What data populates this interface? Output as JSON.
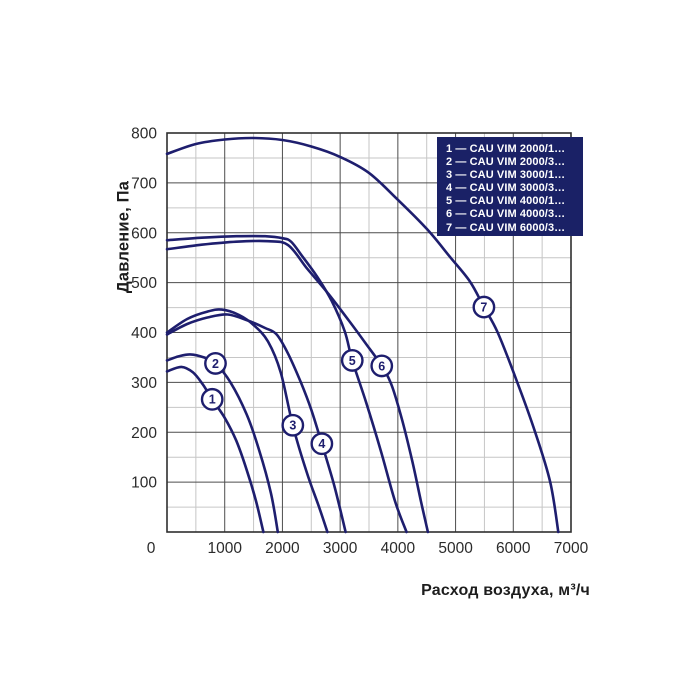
{
  "figure": {
    "y_axis_title": "Давление, Па",
    "x_axis_title": "Расход воздуха, м³/ч"
  },
  "chart_data": {
    "type": "line",
    "title": "",
    "xlabel": "Расход воздуха, м³/ч",
    "ylabel": "Давление, Па",
    "xlim": [
      0,
      7000
    ],
    "ylim": [
      0,
      800
    ],
    "x_major_step": 1000,
    "x_minor_step": 500,
    "y_major_step": 100,
    "y_minor_step": 50,
    "grid": true,
    "x_ticks": [
      0,
      1000,
      2000,
      3000,
      4000,
      5000,
      6000,
      7000
    ],
    "x_tick_labels": [
      "0",
      "1000",
      "2000",
      "3000",
      "4000",
      "5000",
      "6000",
      "7000"
    ],
    "y_ticks": [
      100,
      200,
      300,
      400,
      500,
      600,
      700,
      800
    ],
    "y_tick_labels": [
      "100",
      "200",
      "300",
      "400",
      "500",
      "600",
      "700",
      "800"
    ],
    "line_color": "#1e1e6e",
    "grid_major_color": "#4d4d4d",
    "grid_minor_color": "#c6c6c6",
    "legend_position": "top-right",
    "legend_bg": "#1a2166",
    "legend_text_color": "#ffffff",
    "legend_entries": [
      "1 — CAU VIM 2000/1…",
      "2 — CAU VIM 2000/3…",
      "3 — CAU VIM 3000/1…",
      "4 — CAU VIM 3000/3…",
      "5 — CAU VIM 4000/1…",
      "6 — CAU VIM 4000/3…",
      "7 — CAU VIM 6000/3…"
    ],
    "series": [
      {
        "name": "CAU VIM 2000/1",
        "marker": "1",
        "marker_at": [
          783,
          266
        ],
        "points": [
          [
            0,
            322
          ],
          [
            250,
            331
          ],
          [
            450,
            320
          ],
          [
            620,
            296
          ],
          [
            783,
            266
          ],
          [
            1000,
            229
          ],
          [
            1200,
            183
          ],
          [
            1380,
            125
          ],
          [
            1540,
            63
          ],
          [
            1670,
            0
          ]
        ]
      },
      {
        "name": "CAU VIM 2000/3",
        "marker": "2",
        "marker_at": [
          840,
          338
        ],
        "points": [
          [
            0,
            344
          ],
          [
            200,
            352
          ],
          [
            400,
            356
          ],
          [
            640,
            350
          ],
          [
            840,
            338
          ],
          [
            1100,
            300
          ],
          [
            1380,
            236
          ],
          [
            1600,
            163
          ],
          [
            1800,
            78
          ],
          [
            1920,
            0
          ]
        ]
      },
      {
        "name": "CAU VIM 3000/1",
        "marker": "3",
        "marker_at": [
          2180,
          214
        ],
        "points": [
          [
            0,
            400
          ],
          [
            350,
            427
          ],
          [
            700,
            442
          ],
          [
            950,
            446
          ],
          [
            1250,
            435
          ],
          [
            1500,
            415
          ],
          [
            1750,
            382
          ],
          [
            1970,
            320
          ],
          [
            2180,
            214
          ],
          [
            2420,
            120
          ],
          [
            2620,
            55
          ],
          [
            2780,
            0
          ]
        ]
      },
      {
        "name": "CAU VIM 3000/3",
        "marker": "4",
        "marker_at": [
          2683,
          177
        ],
        "points": [
          [
            0,
            396
          ],
          [
            350,
            417
          ],
          [
            700,
            430
          ],
          [
            1050,
            436
          ],
          [
            1400,
            424
          ],
          [
            1700,
            409
          ],
          [
            1900,
            396
          ],
          [
            2100,
            357
          ],
          [
            2320,
            300
          ],
          [
            2500,
            245
          ],
          [
            2683,
            177
          ],
          [
            2900,
            92
          ],
          [
            3095,
            0
          ]
        ]
      },
      {
        "name": "CAU VIM 4000/1",
        "marker": "5",
        "marker_at": [
          3210,
          344
        ],
        "points": [
          [
            0,
            585
          ],
          [
            600,
            590
          ],
          [
            1200,
            593
          ],
          [
            1700,
            593
          ],
          [
            2000,
            589
          ],
          [
            2150,
            582
          ],
          [
            2350,
            552
          ],
          [
            2600,
            512
          ],
          [
            2850,
            464
          ],
          [
            3080,
            402
          ],
          [
            3210,
            344
          ],
          [
            3450,
            260
          ],
          [
            3700,
            165
          ],
          [
            3950,
            62
          ],
          [
            4150,
            0
          ]
        ]
      },
      {
        "name": "CAU VIM 4000/3",
        "marker": "6",
        "marker_at": [
          3721,
          333
        ],
        "points": [
          [
            0,
            567
          ],
          [
            600,
            576
          ],
          [
            1200,
            582
          ],
          [
            1750,
            583
          ],
          [
            2100,
            575
          ],
          [
            2430,
            528
          ],
          [
            2800,
            477
          ],
          [
            3150,
            424
          ],
          [
            3450,
            377
          ],
          [
            3721,
            333
          ],
          [
            3900,
            292
          ],
          [
            4080,
            222
          ],
          [
            4250,
            142
          ],
          [
            4400,
            62
          ],
          [
            4520,
            0
          ]
        ]
      },
      {
        "name": "CAU VIM 6000/3",
        "marker": "7",
        "marker_at": [
          5491,
          451
        ],
        "points": [
          [
            0,
            758
          ],
          [
            500,
            778
          ],
          [
            1000,
            787
          ],
          [
            1500,
            790
          ],
          [
            2000,
            786
          ],
          [
            2500,
            773
          ],
          [
            3000,
            752
          ],
          [
            3500,
            720
          ],
          [
            4000,
            666
          ],
          [
            4500,
            608
          ],
          [
            4900,
            552
          ],
          [
            5250,
            502
          ],
          [
            5491,
            451
          ],
          [
            5730,
            400
          ],
          [
            6070,
            300
          ],
          [
            6380,
            200
          ],
          [
            6640,
            100
          ],
          [
            6780,
            0
          ]
        ]
      }
    ]
  }
}
